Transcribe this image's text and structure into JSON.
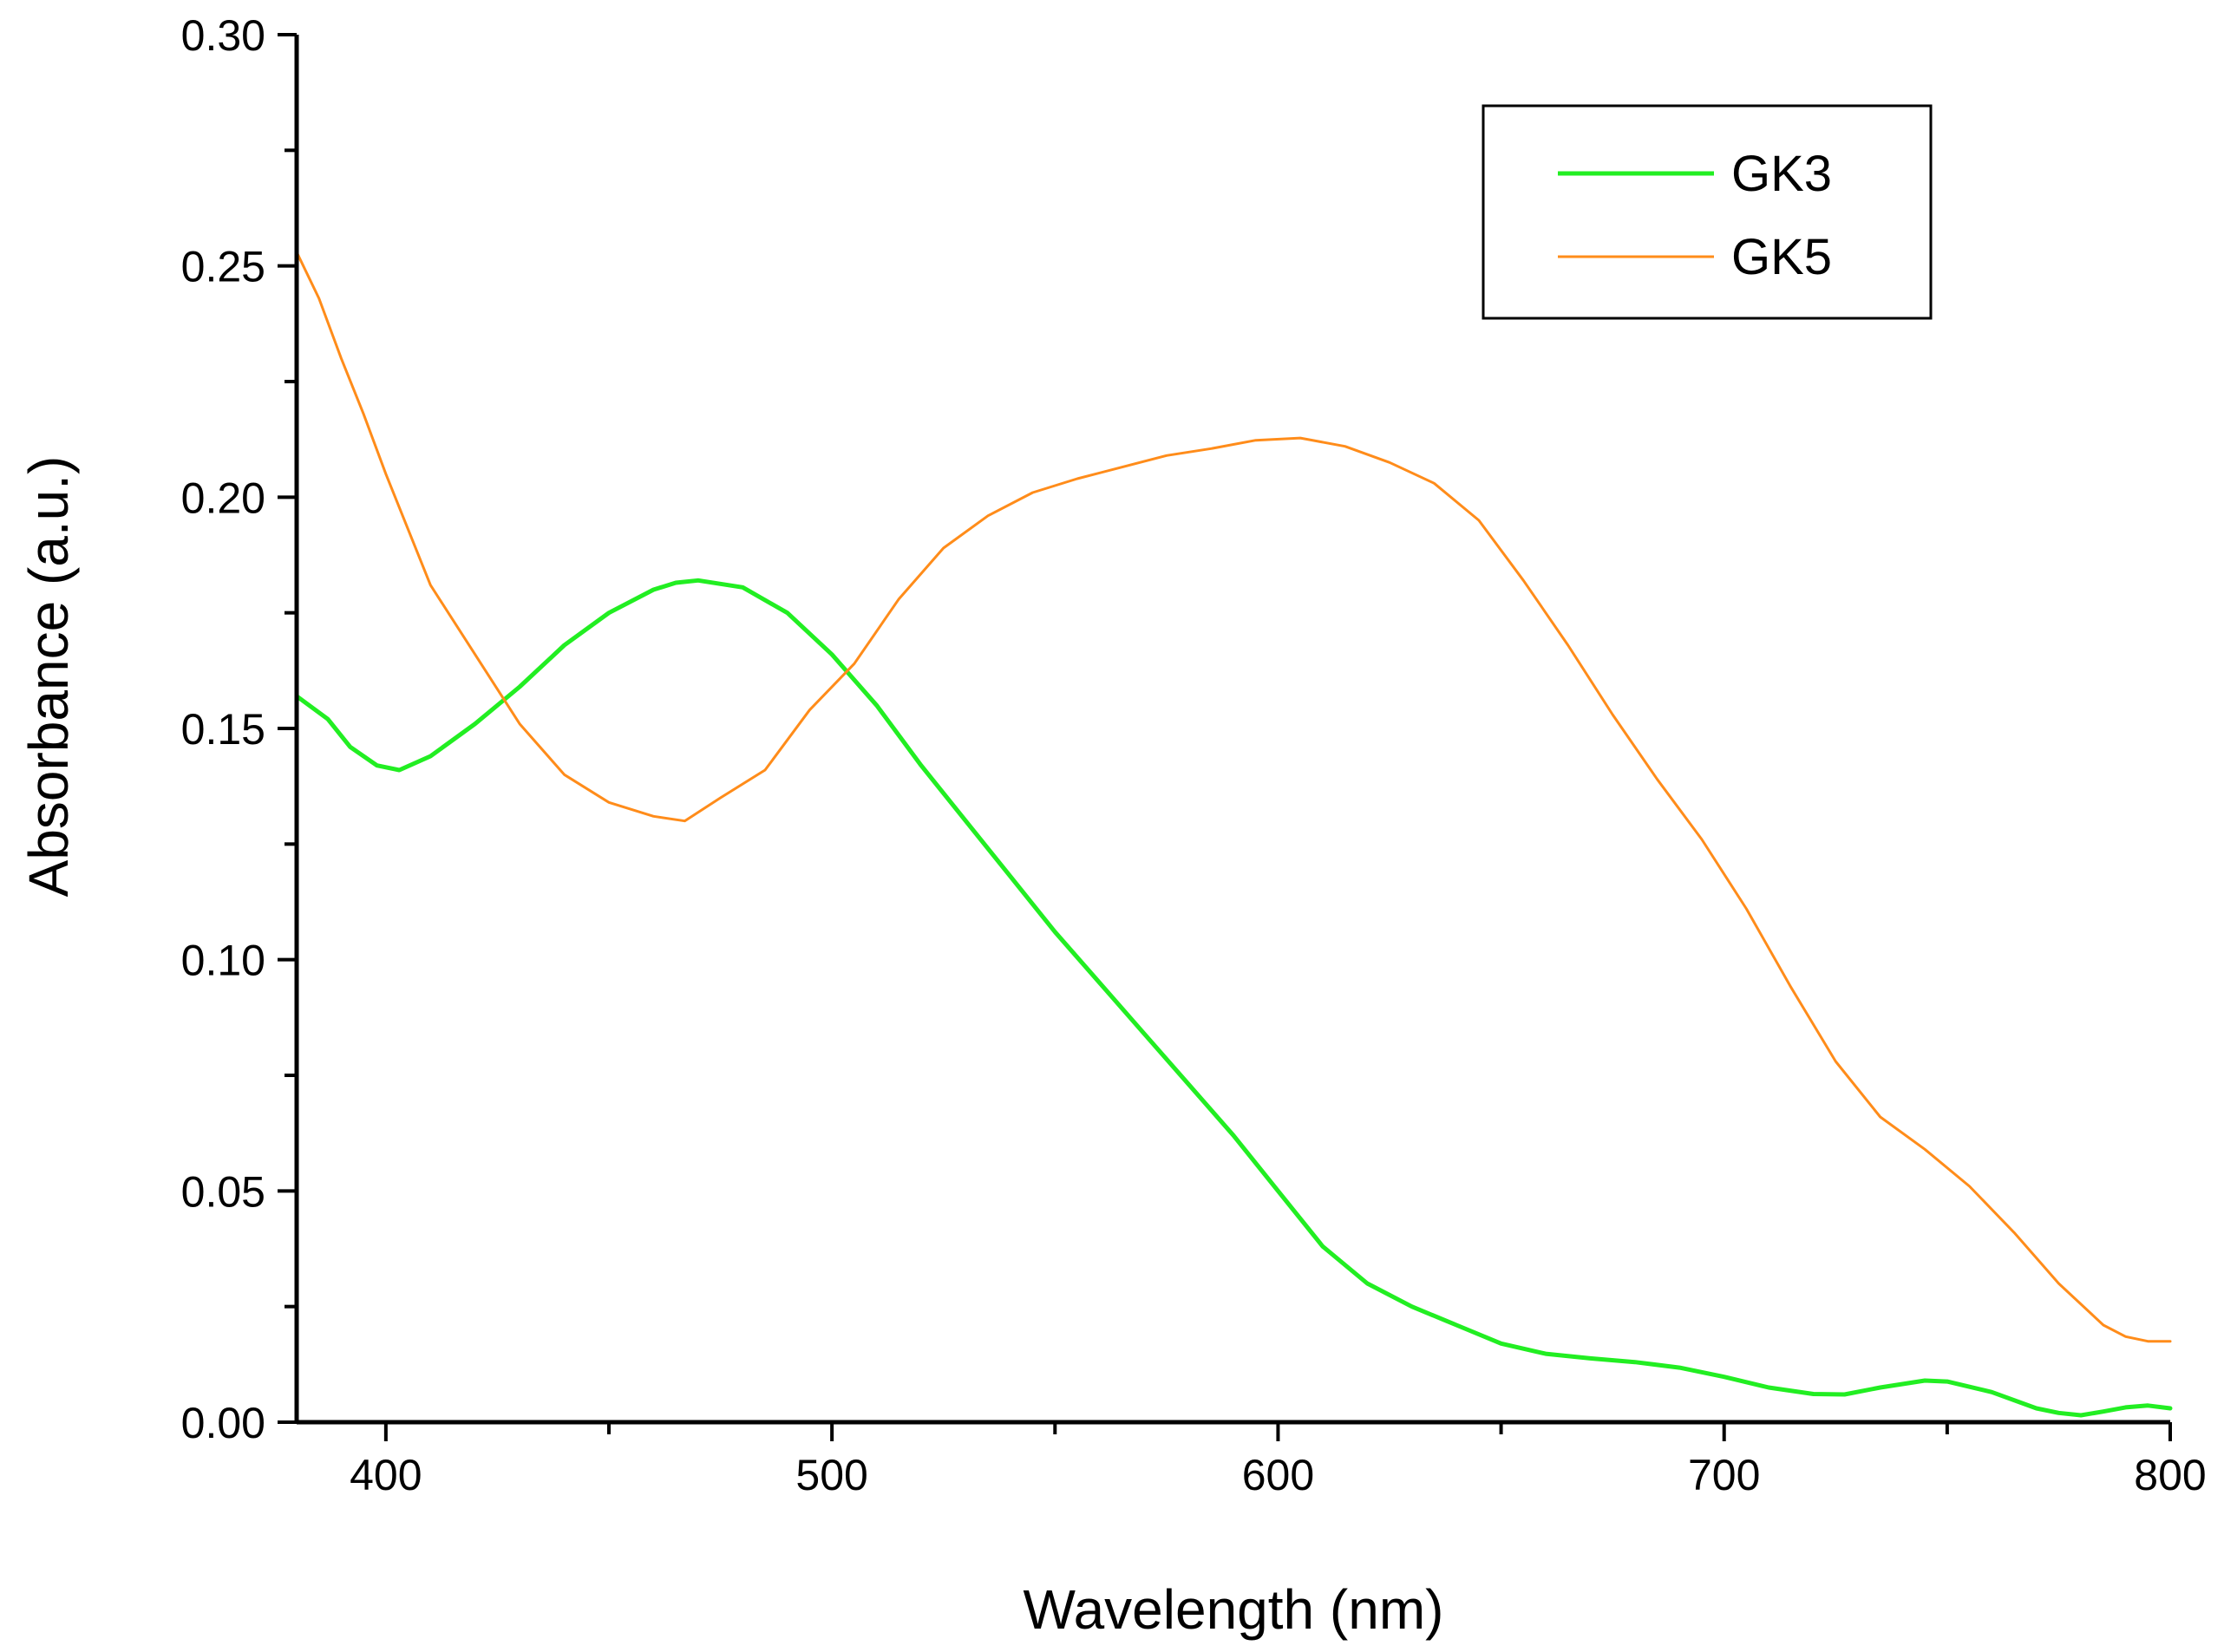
{
  "chart_data": {
    "type": "line",
    "title": "",
    "xlabel": "Wavelength (nm)",
    "ylabel": "Absorbance (a.u.)",
    "xlim": [
      380,
      800
    ],
    "ylim": [
      0,
      0.3
    ],
    "xticks": [
      400,
      500,
      600,
      700,
      800
    ],
    "xtick_labels": [
      "400",
      "500",
      "600",
      "700",
      "800"
    ],
    "yticks": [
      0,
      0.05,
      0.1,
      0.15,
      0.2,
      0.25,
      0.3
    ],
    "ytick_labels": [
      "0.00",
      "0.05",
      "0.10",
      "0.15",
      "0.20",
      "0.25",
      "0.30"
    ],
    "grid": false,
    "legend_position": "top-right",
    "series": [
      {
        "name": "GK3",
        "color": "#22ee22",
        "x": [
          380,
          387,
          392,
          398,
          403,
          410,
          420,
          430,
          440,
          450,
          460,
          465,
          470,
          480,
          490,
          500,
          510,
          520,
          530,
          540,
          550,
          560,
          570,
          580,
          590,
          600,
          610,
          620,
          630,
          640,
          650,
          660,
          670,
          680,
          690,
          700,
          710,
          720,
          727,
          735,
          745,
          750,
          760,
          770,
          775,
          780,
          785,
          790,
          795,
          800
        ],
        "y": [
          0.157,
          0.152,
          0.146,
          0.142,
          0.141,
          0.144,
          0.151,
          0.159,
          0.168,
          0.175,
          0.18,
          0.1815,
          0.182,
          0.1805,
          0.175,
          0.166,
          0.155,
          0.142,
          0.13,
          0.118,
          0.106,
          0.095,
          0.084,
          0.073,
          0.062,
          0.05,
          0.038,
          0.03,
          0.025,
          0.021,
          0.017,
          0.0148,
          0.0138,
          0.013,
          0.0118,
          0.0098,
          0.0075,
          0.0061,
          0.006,
          0.0075,
          0.009,
          0.0088,
          0.0065,
          0.003,
          0.002,
          0.0015,
          0.0023,
          0.0032,
          0.0036,
          0.003
        ]
      },
      {
        "name": "GK5",
        "color": "#ff8c1a",
        "x": [
          380,
          385,
          390,
          395,
          400,
          405,
          410,
          420,
          430,
          440,
          450,
          460,
          467,
          475,
          485,
          495,
          505,
          515,
          525,
          535,
          545,
          555,
          565,
          575,
          585,
          595,
          605,
          615,
          625,
          635,
          645,
          655,
          665,
          675,
          685,
          695,
          705,
          715,
          725,
          735,
          745,
          755,
          765,
          775,
          785,
          790,
          795,
          800
        ],
        "y": [
          0.253,
          0.243,
          0.23,
          0.218,
          0.205,
          0.193,
          0.181,
          0.166,
          0.151,
          0.14,
          0.134,
          0.131,
          0.13,
          0.135,
          0.141,
          0.154,
          0.164,
          0.178,
          0.189,
          0.196,
          0.201,
          0.204,
          0.2065,
          0.209,
          0.2105,
          0.2123,
          0.2128,
          0.211,
          0.2075,
          0.203,
          0.195,
          0.182,
          0.168,
          0.153,
          0.139,
          0.126,
          0.111,
          0.094,
          0.078,
          0.066,
          0.059,
          0.051,
          0.041,
          0.03,
          0.021,
          0.0185,
          0.0175,
          0.0175
        ]
      }
    ]
  }
}
